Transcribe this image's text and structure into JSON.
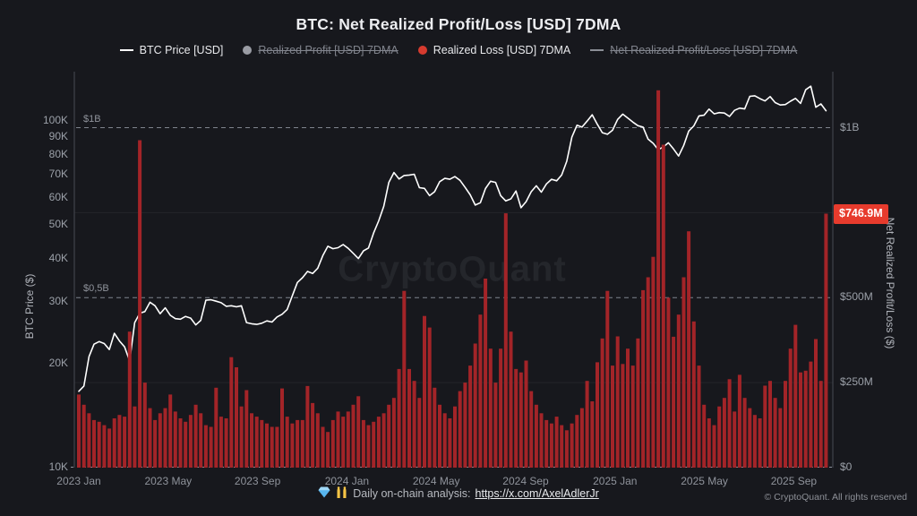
{
  "header": {
    "title": "BTC: Net Realized Profit/Loss [USD] 7DMA"
  },
  "legend": {
    "items": [
      {
        "label": "BTC Price [USD]",
        "marker": "line",
        "color": "#ffffff",
        "disabled": false
      },
      {
        "label": "Realized Profit [USD] 7DMA",
        "marker": "dot",
        "color": "#9a9ca4",
        "disabled": true
      },
      {
        "label": "Realized Loss [USD] 7DMA",
        "marker": "dot",
        "color": "#d63b2f",
        "disabled": false
      },
      {
        "label": "Net Realized Profit/Loss [USD] 7DMA",
        "marker": "line",
        "color": "#8b8e96",
        "disabled": true
      }
    ]
  },
  "watermark": {
    "text": "CryptoQuant"
  },
  "footer": {
    "emoji": "💎🙌",
    "prefix": "Daily on-chain analysis:",
    "link": "https://x.com/AxelAdlerJr",
    "copyright": "© CryptoQuant. All rights reserved"
  },
  "chart_data": {
    "type": "mixed-line-bar",
    "title": "BTC: Net Realized Profit/Loss [USD] 7DMA",
    "x_axis": {
      "start": "2023-01",
      "end": "2025-11",
      "tick_labels": [
        "2023 Jan",
        "2023 May",
        "2023 Sep",
        "2024 Jan",
        "2024 May",
        "2024 Sep",
        "2025 Jan",
        "2025 May",
        "2025 Sep"
      ],
      "tick_month_offsets": [
        0,
        4,
        8,
        12,
        16,
        20,
        24,
        28,
        32
      ]
    },
    "left_axis": {
      "title": "BTC Price ($)",
      "scale": "log",
      "unit": "K USD",
      "ticks": [
        {
          "label": "10K",
          "value": 10
        },
        {
          "label": "20K",
          "value": 20
        },
        {
          "label": "30K",
          "value": 30
        },
        {
          "label": "40K",
          "value": 40
        },
        {
          "label": "50K",
          "value": 50
        },
        {
          "label": "60K",
          "value": 60
        },
        {
          "label": "70K",
          "value": 70
        },
        {
          "label": "80K",
          "value": 80
        },
        {
          "label": "90K",
          "value": 90
        },
        {
          "label": "100K",
          "value": 100
        }
      ]
    },
    "right_axis": {
      "title": "Net Realized Profit/Loss ($)",
      "scale": "linear",
      "unit": "M USD",
      "ticks": [
        {
          "label": "$0",
          "value": 0
        },
        {
          "label": "$250M",
          "value": 250
        },
        {
          "label": "$500M",
          "value": 500
        },
        {
          "label": "$1B",
          "value": 1000
        }
      ]
    },
    "annotations": [
      {
        "label": "$1B",
        "value": 1000
      },
      {
        "label": "$0,5B",
        "value": 500
      }
    ],
    "gridlines": [
      250,
      750
    ],
    "last_value": {
      "label": "$746.9M",
      "value": 746.9,
      "series": "Realized Loss [USD] 7DMA"
    },
    "disabled_series": [
      "Realized Profit [USD] 7DMA",
      "Net Realized Profit/Loss [USD] 7DMA"
    ],
    "series": [
      {
        "name": "BTC Price [USD]",
        "type": "line",
        "axis": "left",
        "color": "#ffffff",
        "unit": "K USD",
        "cadence": "weekly",
        "values": [
          16.6,
          17.2,
          20.9,
          22.7,
          23.1,
          22.8,
          21.9,
          24.4,
          23.2,
          22.3,
          20.3,
          26.2,
          27.9,
          28.2,
          30.0,
          29.3,
          27.8,
          28.9,
          27.5,
          26.9,
          26.8,
          27.3,
          27.0,
          25.8,
          26.6,
          30.4,
          30.5,
          30.2,
          29.9,
          29.2,
          29.3,
          29.1,
          29.3,
          26.2,
          26.0,
          25.9,
          26.1,
          26.5,
          26.3,
          27.2,
          27.7,
          28.6,
          31.3,
          34.2,
          35.3,
          36.8,
          36.3,
          37.6,
          40.9,
          43.5,
          42.8,
          43.1,
          44.0,
          42.9,
          41.5,
          40.1,
          42.2,
          43.0,
          47.5,
          51.5,
          56.8,
          66.5,
          71.0,
          68.0,
          69.6,
          69.8,
          70.2,
          64.2,
          63.9,
          60.9,
          62.5,
          66.8,
          68.3,
          67.9,
          69.1,
          67.4,
          64.3,
          61.2,
          57.2,
          58.1,
          63.8,
          67.0,
          66.5,
          60.9,
          58.8,
          59.6,
          62.8,
          56.2,
          58.5,
          62.5,
          65.0,
          62.3,
          65.8,
          67.9,
          67.2,
          69.8,
          76.5,
          89.8,
          97.2,
          96.0,
          99.9,
          104.2,
          97.8,
          92.5,
          91.5,
          94.0,
          101.0,
          104.6,
          102.0,
          99.2,
          96.9,
          96.0,
          88.6,
          86.2,
          82.6,
          84.2,
          86.5,
          83.0,
          79.2,
          85.0,
          93.5,
          96.8,
          103.4,
          103.9,
          108.2,
          104.8,
          105.7,
          105.4,
          103.0,
          107.3,
          108.9,
          108.3,
          117.8,
          118.2,
          116.0,
          114.2,
          117.6,
          113.0,
          111.2,
          111.5,
          114.0,
          116.2,
          112.4,
          123.0,
          126.0,
          109.5,
          112.0,
          107.0
        ]
      },
      {
        "name": "Realized Loss [USD] 7DMA",
        "type": "bar",
        "axis": "right",
        "color": "#a32428",
        "unit": "M USD",
        "cadence": "weekly",
        "values": [
          215,
          185,
          160,
          140,
          135,
          125,
          115,
          145,
          155,
          150,
          400,
          180,
          963,
          250,
          175,
          140,
          160,
          175,
          215,
          165,
          145,
          135,
          155,
          185,
          160,
          125,
          120,
          235,
          150,
          145,
          325,
          295,
          180,
          228,
          160,
          150,
          140,
          130,
          120,
          120,
          233,
          150,
          130,
          140,
          140,
          240,
          190,
          160,
          120,
          105,
          140,
          165,
          150,
          165,
          185,
          210,
          140,
          125,
          135,
          150,
          160,
          185,
          205,
          290,
          520,
          290,
          255,
          205,
          446,
          412,
          235,
          185,
          160,
          145,
          180,
          225,
          250,
          300,
          365,
          450,
          556,
          350,
          250,
          350,
          748,
          400,
          290,
          280,
          315,
          225,
          185,
          160,
          140,
          130,
          150,
          125,
          110,
          130,
          155,
          175,
          255,
          195,
          310,
          380,
          520,
          300,
          386,
          305,
          350,
          300,
          380,
          522,
          560,
          620,
          1110,
          950,
          500,
          385,
          450,
          560,
          695,
          430,
          300,
          185,
          145,
          125,
          180,
          205,
          260,
          165,
          273,
          205,
          175,
          155,
          145,
          241,
          255,
          205,
          175,
          255,
          350,
          420,
          280,
          285,
          312,
          378,
          255,
          747
        ]
      }
    ]
  }
}
